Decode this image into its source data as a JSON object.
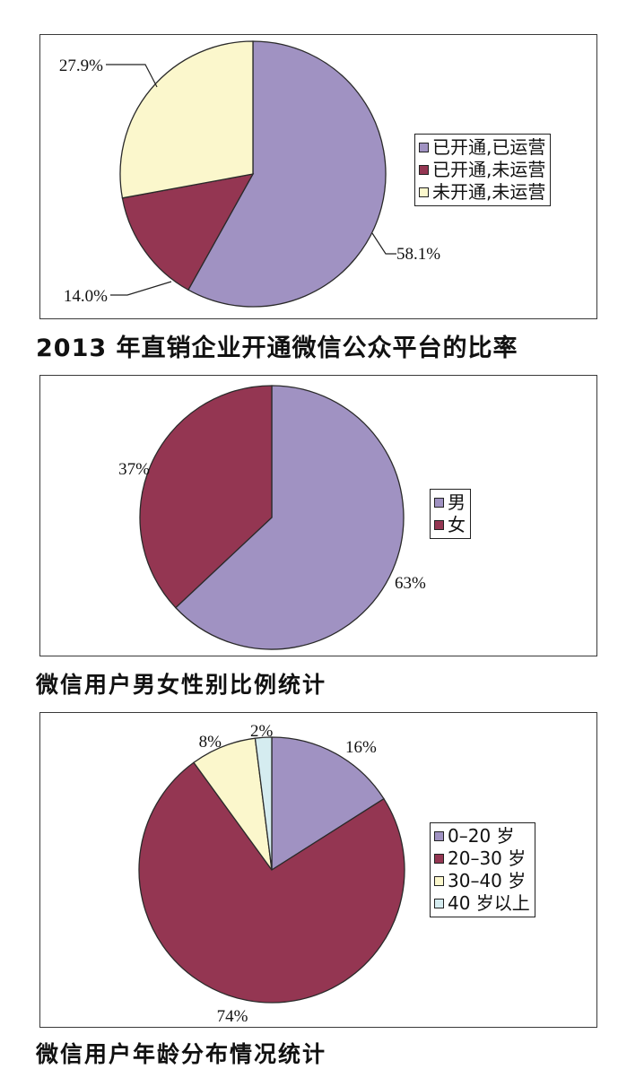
{
  "chart_data": [
    {
      "type": "pie",
      "title": "2013 年直销企业开通微信公众平台的比率",
      "labels": [
        "已开通,已运营",
        "已开通,未运营",
        "未开通,未运营"
      ],
      "values": [
        58.1,
        14.0,
        27.9
      ],
      "value_labels": [
        "58.1%",
        "14.0%",
        "27.9%"
      ],
      "colors": [
        "#a092c2",
        "#943652",
        "#fbf7cc"
      ],
      "legend": "right"
    },
    {
      "type": "pie",
      "title": "微信用户男女性别比例统计",
      "labels": [
        "男",
        "女"
      ],
      "values": [
        63,
        37
      ],
      "value_labels": [
        "63%",
        "37%"
      ],
      "colors": [
        "#a092c2",
        "#943652"
      ],
      "legend": "right"
    },
    {
      "type": "pie",
      "title": "微信用户年龄分布情况统计",
      "labels": [
        "0–20 岁",
        "20–30 岁",
        "30–40 岁",
        "40 岁以上"
      ],
      "values": [
        16,
        74,
        8,
        2
      ],
      "value_labels": [
        "16%",
        "74%",
        "8%",
        "2%"
      ],
      "colors": [
        "#a092c2",
        "#943652",
        "#fbf7cc",
        "#d5ecf0"
      ],
      "legend": "right"
    }
  ]
}
